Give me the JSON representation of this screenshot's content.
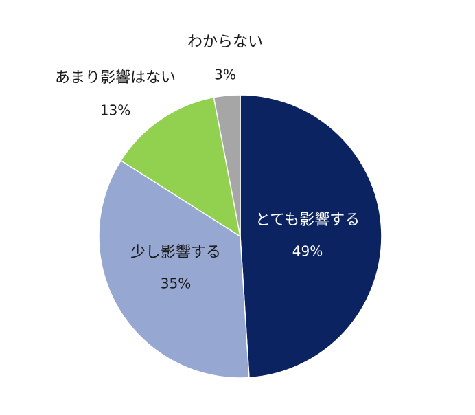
{
  "chart_data": {
    "type": "pie",
    "title": "",
    "start_angle_deg": 0,
    "direction": "clockwise",
    "legend": "none",
    "slices": [
      {
        "label": "とても影響する",
        "value": 49,
        "value_text": "49%",
        "color": "#0b2360",
        "label_color": "#ffffff",
        "label_position": "inside"
      },
      {
        "label": "少し影響する",
        "value": 35,
        "value_text": "35%",
        "color": "#96a8d2",
        "label_color": "#1a1a1a",
        "label_position": "inside"
      },
      {
        "label": "あまり影響はない",
        "value": 13,
        "value_text": "13%",
        "color": "#92d050",
        "label_color": "#1a1a1a",
        "label_position": "outside"
      },
      {
        "label": "わからない",
        "value": 3,
        "value_text": "3%",
        "color": "#a6a6a6",
        "label_color": "#1a1a1a",
        "label_position": "outside"
      }
    ]
  }
}
